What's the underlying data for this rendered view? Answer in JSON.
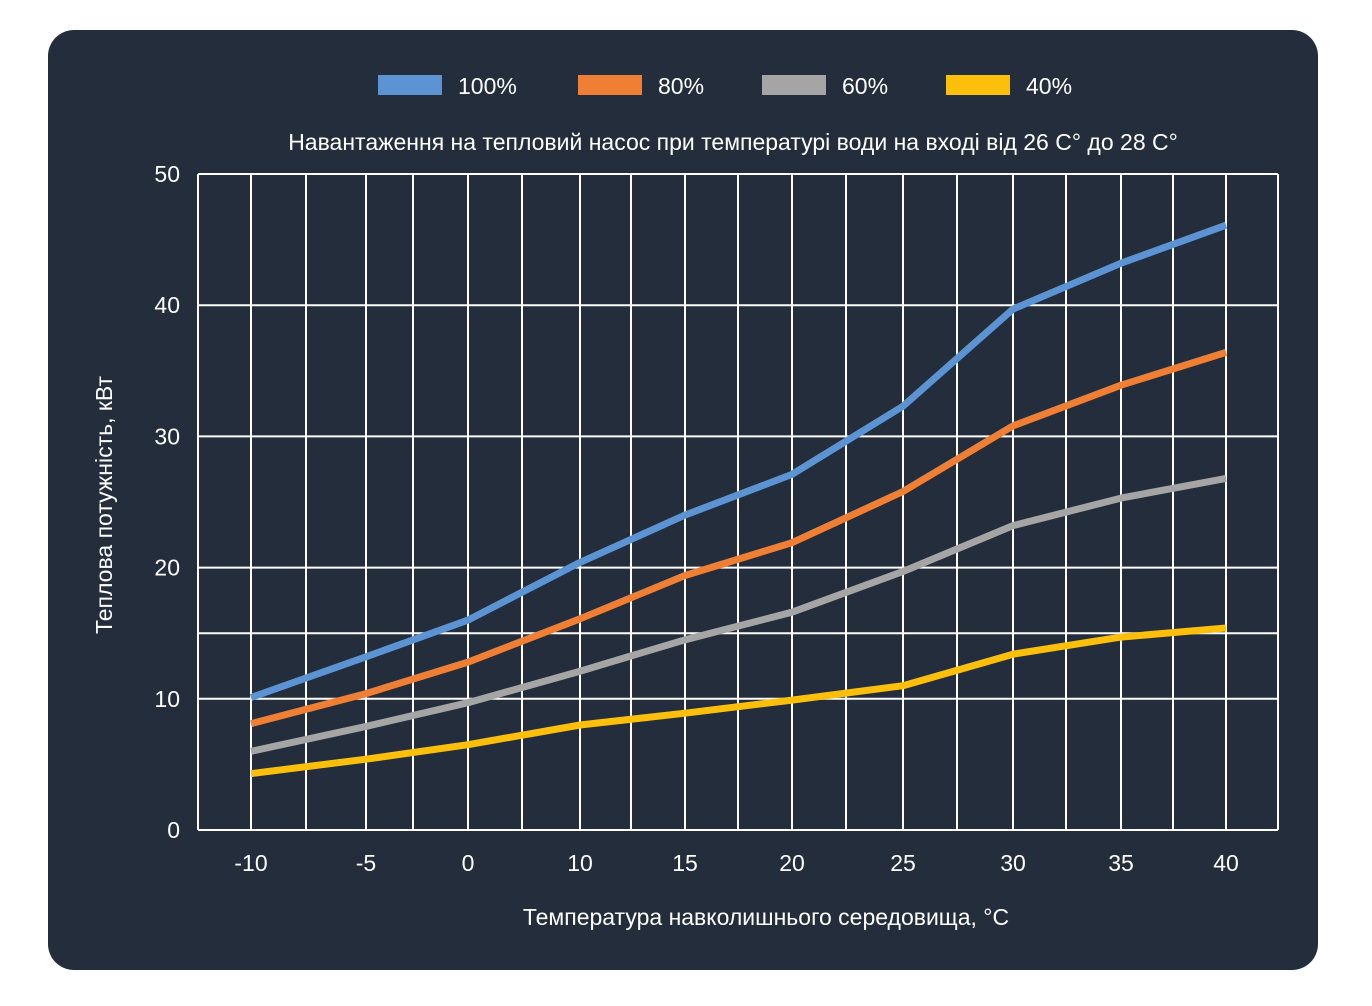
{
  "colors": {
    "background": "#232d3b",
    "grid": "#ffffff",
    "text": "#ffffff"
  },
  "chart_data": {
    "type": "line",
    "title": "Навантаження на тепловий насос при температурі води на вході від 26 С° до 28 С°",
    "xlabel": "Температура навколишнього середовища, °C",
    "ylabel": "Теплова потужність, кВт",
    "x": [
      -10,
      -5,
      0,
      10,
      15,
      20,
      25,
      30,
      35,
      40
    ],
    "x_tick_labels": [
      "-10",
      "-5",
      "0",
      "10",
      "15",
      "20",
      "25",
      "30",
      "35",
      "40"
    ],
    "y_ticks": [
      0,
      10,
      20,
      30,
      40,
      50
    ],
    "y_tick_labels": [
      "0",
      "10",
      "20",
      "30",
      "40",
      "50"
    ],
    "ylim": [
      0,
      50
    ],
    "grid": true,
    "legend_position": "top-center",
    "series": [
      {
        "name": "100%",
        "color": "#5b93d3",
        "values": [
          10.1,
          13.2,
          16.0,
          20.4,
          24.0,
          27.1,
          32.3,
          39.7,
          43.2,
          46.1
        ]
      },
      {
        "name": "80%",
        "color": "#ee7f35",
        "values": [
          8.1,
          10.4,
          12.8,
          16.1,
          19.4,
          21.9,
          25.8,
          30.8,
          33.9,
          36.4
        ]
      },
      {
        "name": "60%",
        "color": "#a5a5a5",
        "values": [
          6.0,
          7.9,
          9.7,
          12.1,
          14.5,
          16.6,
          19.7,
          23.2,
          25.3,
          26.8
        ]
      },
      {
        "name": "40%",
        "color": "#fbbf0c",
        "values": [
          4.3,
          5.4,
          6.5,
          8.0,
          8.9,
          9.9,
          11.0,
          13.4,
          14.7,
          15.4
        ]
      }
    ]
  }
}
